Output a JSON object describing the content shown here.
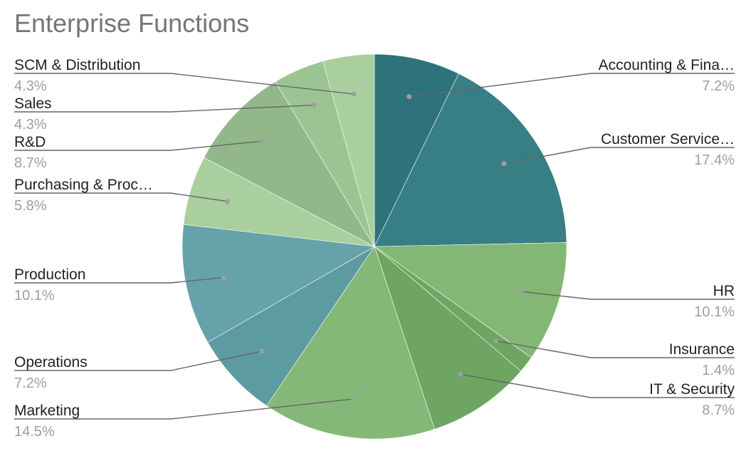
{
  "chart_data": {
    "type": "pie",
    "title": "Enterprise Functions",
    "slices": [
      {
        "label": "Accounting & Fina…",
        "value": 7.2,
        "display": "7.2%",
        "color": "#2e737b"
      },
      {
        "label": "Customer Service…",
        "value": 17.4,
        "display": "17.4%",
        "color": "#387e85"
      },
      {
        "label": "HR",
        "value": 10.1,
        "display": "10.1%",
        "color": "#83b776"
      },
      {
        "label": "Insurance",
        "value": 1.4,
        "display": "1.4%",
        "color": "#6ea563"
      },
      {
        "label": "IT & Security",
        "value": 8.7,
        "display": "8.7%",
        "color": "#6ea563"
      },
      {
        "label": "Marketing",
        "value": 14.5,
        "display": "14.5%",
        "color": "#84b878"
      },
      {
        "label": "Operations",
        "value": 7.2,
        "display": "7.2%",
        "color": "#5d9ba2"
      },
      {
        "label": "Production",
        "value": 10.1,
        "display": "10.1%",
        "color": "#66a2a9"
      },
      {
        "label": "Purchasing & Proc…",
        "value": 5.8,
        "display": "5.8%",
        "color": "#a8cf9d"
      },
      {
        "label": "R&D",
        "value": 8.7,
        "display": "8.7%",
        "color": "#91b78a"
      },
      {
        "label": "Sales",
        "value": 4.3,
        "display": "4.3%",
        "color": "#9cc492"
      },
      {
        "label": "SCM & Distribution",
        "value": 4.3,
        "display": "4.3%",
        "color": "#a8cf9d"
      }
    ],
    "start_angle": "12 o'clock",
    "direction": "clockwise",
    "legend": "none",
    "labels": "outside with leader lines"
  }
}
